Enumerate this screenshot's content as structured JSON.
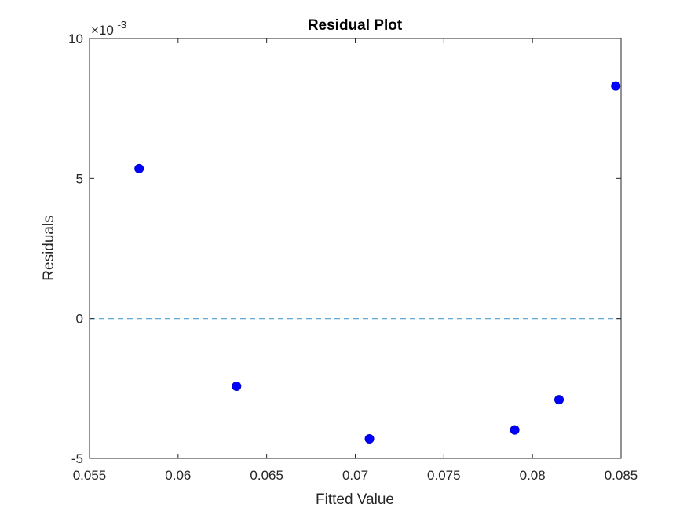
{
  "chart_data": {
    "type": "scatter",
    "title": "Residual Plot",
    "xlabel": "Fitted Value",
    "ylabel": "Residuals",
    "xlim": [
      0.055,
      0.085
    ],
    "ylim": [
      -0.005,
      0.01
    ],
    "xticks": [
      0.055,
      0.06,
      0.065,
      0.07,
      0.075,
      0.08,
      0.085
    ],
    "xtick_labels": [
      "0.055",
      "0.06",
      "0.065",
      "0.07",
      "0.075",
      "0.08",
      "0.085"
    ],
    "yticks": [
      -0.005,
      0,
      0.005,
      0.01
    ],
    "ytick_labels": [
      "-5",
      "0",
      "5",
      "10"
    ],
    "y_exponent_base": "×10",
    "y_exponent_power": "-3",
    "grid": false,
    "reference_line": {
      "y": 0,
      "style": "dashed",
      "color": "#4f9fcf"
    },
    "marker_color": "#0000ff",
    "points": [
      {
        "x": 0.0578,
        "y": 0.00535
      },
      {
        "x": 0.0633,
        "y": -0.00242
      },
      {
        "x": 0.0708,
        "y": -0.0043
      },
      {
        "x": 0.079,
        "y": -0.00398
      },
      {
        "x": 0.0815,
        "y": -0.0029
      },
      {
        "x": 0.0847,
        "y": 0.0083
      }
    ]
  }
}
